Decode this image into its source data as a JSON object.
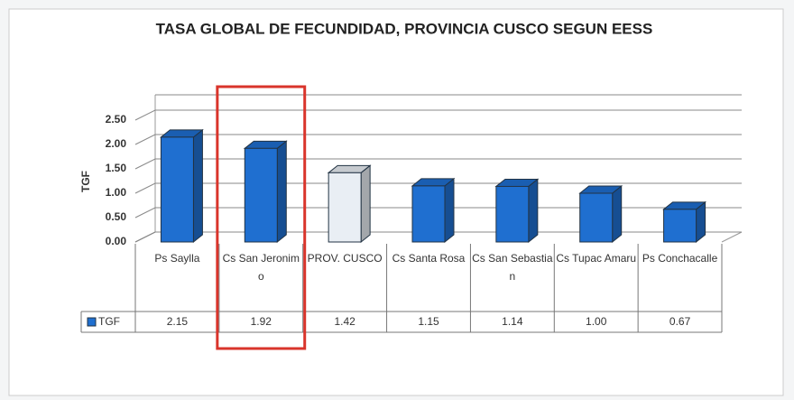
{
  "chart_data": {
    "type": "bar3d",
    "title": "TASA GLOBAL DE FECUNDIDAD, PROVINCIA CUSCO SEGUN EESS",
    "y_label": "TGF",
    "categories": [
      "Ps Saylla",
      "Cs San Jeronimo",
      "PROV. CUSCO",
      "Cs Santa Rosa",
      "Cs San Sebastian",
      "Cs Tupac Amaru",
      "Ps Conchacalle"
    ],
    "series": [
      {
        "name": "TGF",
        "color": "#1f6fd0",
        "colors": [
          "#1f6fd0",
          "#1f6fd0",
          "#e9eef4",
          "#1f6fd0",
          "#1f6fd0",
          "#1f6fd0",
          "#1f6fd0"
        ],
        "values": [
          2.15,
          1.92,
          1.42,
          1.15,
          1.14,
          1.0,
          0.67
        ],
        "value_labels": [
          "2.15",
          "1.92",
          "1.42",
          "1.15",
          "1.14",
          "1.00",
          "0.67"
        ]
      }
    ],
    "ylim": [
      0,
      2.5
    ],
    "yticks": [
      {
        "value": 0,
        "label": "0.00"
      },
      {
        "value": 0.5,
        "label": "0.50"
      },
      {
        "value": 1,
        "label": "1.00"
      },
      {
        "value": 1.5,
        "label": "1.50"
      },
      {
        "value": 2,
        "label": "2.00"
      },
      {
        "value": 2.5,
        "label": "2.50"
      }
    ],
    "grid": true
  }
}
